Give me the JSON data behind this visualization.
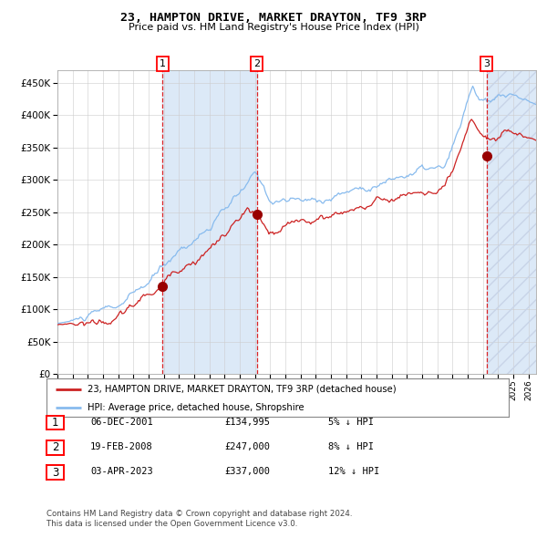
{
  "title": "23, HAMPTON DRIVE, MARKET DRAYTON, TF9 3RP",
  "subtitle": "Price paid vs. HM Land Registry's House Price Index (HPI)",
  "xlim_start": 1995.0,
  "xlim_end": 2026.5,
  "ylim_min": 0,
  "ylim_max": 470000,
  "yticks": [
    0,
    50000,
    100000,
    150000,
    200000,
    250000,
    300000,
    350000,
    400000,
    450000
  ],
  "sale_dates": [
    2001.917,
    2008.125,
    2023.25
  ],
  "sale_prices": [
    134995,
    247000,
    337000
  ],
  "sale_labels": [
    "1",
    "2",
    "3"
  ],
  "dashed_line_color": "#dd0000",
  "highlight_band_color": "#dce9f7",
  "red_line_color": "#cc2222",
  "blue_line_color": "#88bbee",
  "dot_color": "#990000",
  "background_color": "#ffffff",
  "grid_color": "#cccccc",
  "legend_entries": [
    "23, HAMPTON DRIVE, MARKET DRAYTON, TF9 3RP (detached house)",
    "HPI: Average price, detached house, Shropshire"
  ],
  "table_entries": [
    {
      "num": "1",
      "date": "06-DEC-2001",
      "price": "£134,995",
      "pct": "5% ↓ HPI"
    },
    {
      "num": "2",
      "date": "19-FEB-2008",
      "price": "£247,000",
      "pct": "8% ↓ HPI"
    },
    {
      "num": "3",
      "date": "03-APR-2023",
      "price": "£337,000",
      "pct": "12% ↓ HPI"
    }
  ],
  "footer": "Contains HM Land Registry data © Crown copyright and database right 2024.\nThis data is licensed under the Open Government Licence v3.0."
}
